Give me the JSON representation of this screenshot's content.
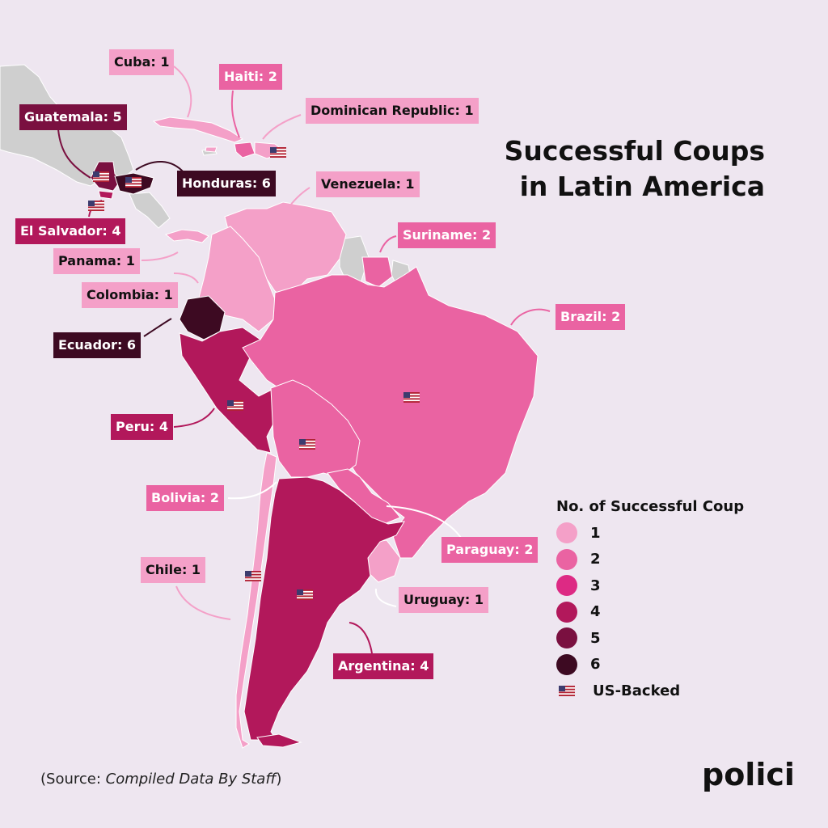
{
  "title_line1": "Successful Coups",
  "title_line2": "in Latin America",
  "legend": {
    "title": "No. of Successful Coup",
    "items": [
      {
        "value": "1",
        "color": "#f4a0c8"
      },
      {
        "value": "2",
        "color": "#ea63a2"
      },
      {
        "value": "3",
        "color": "#dd2a84"
      },
      {
        "value": "4",
        "color": "#b2185b"
      },
      {
        "value": "5",
        "color": "#7a1040"
      },
      {
        "value": "6",
        "color": "#3d0a22"
      }
    ],
    "us_backed_label": "US-Backed"
  },
  "countries": [
    {
      "name": "Cuba",
      "label": "Cuba: 1",
      "coups": 1
    },
    {
      "name": "Haiti",
      "label": "Haiti: 2",
      "coups": 2
    },
    {
      "name": "Dominican Republic",
      "label": "Dominican Republic: 1",
      "coups": 1
    },
    {
      "name": "Guatemala",
      "label": "Guatemala: 5",
      "coups": 5
    },
    {
      "name": "Honduras",
      "label": "Honduras: 6",
      "coups": 6
    },
    {
      "name": "Venezuela",
      "label": "Venezuela: 1",
      "coups": 1
    },
    {
      "name": "El Salvador",
      "label": "El Salvador: 4",
      "coups": 4
    },
    {
      "name": "Suriname",
      "label": "Suriname: 2",
      "coups": 2
    },
    {
      "name": "Panama",
      "label": "Panama: 1",
      "coups": 1
    },
    {
      "name": "Colombia",
      "label": "Colombia: 1",
      "coups": 1
    },
    {
      "name": "Brazil",
      "label": "Brazil: 2",
      "coups": 2
    },
    {
      "name": "Ecuador",
      "label": "Ecuador: 6",
      "coups": 6
    },
    {
      "name": "Peru",
      "label": "Peru: 4",
      "coups": 4
    },
    {
      "name": "Bolivia",
      "label": "Bolivia: 2",
      "coups": 2
    },
    {
      "name": "Paraguay",
      "label": "Paraguay: 2",
      "coups": 2
    },
    {
      "name": "Chile",
      "label": "Chile: 1",
      "coups": 1
    },
    {
      "name": "Uruguay",
      "label": "Uruguay: 1",
      "coups": 1
    },
    {
      "name": "Argentina",
      "label": "Argentina: 4",
      "coups": 4
    }
  ],
  "us_backed": [
    "Guatemala",
    "Honduras",
    "El Salvador",
    "Dominican Republic",
    "Brazil",
    "Peru",
    "Bolivia",
    "Chile",
    "Argentina"
  ],
  "source_prefix": "(Source: ",
  "source_text": "Compiled Data By Staff",
  "source_suffix": ")",
  "brand": "polici"
}
